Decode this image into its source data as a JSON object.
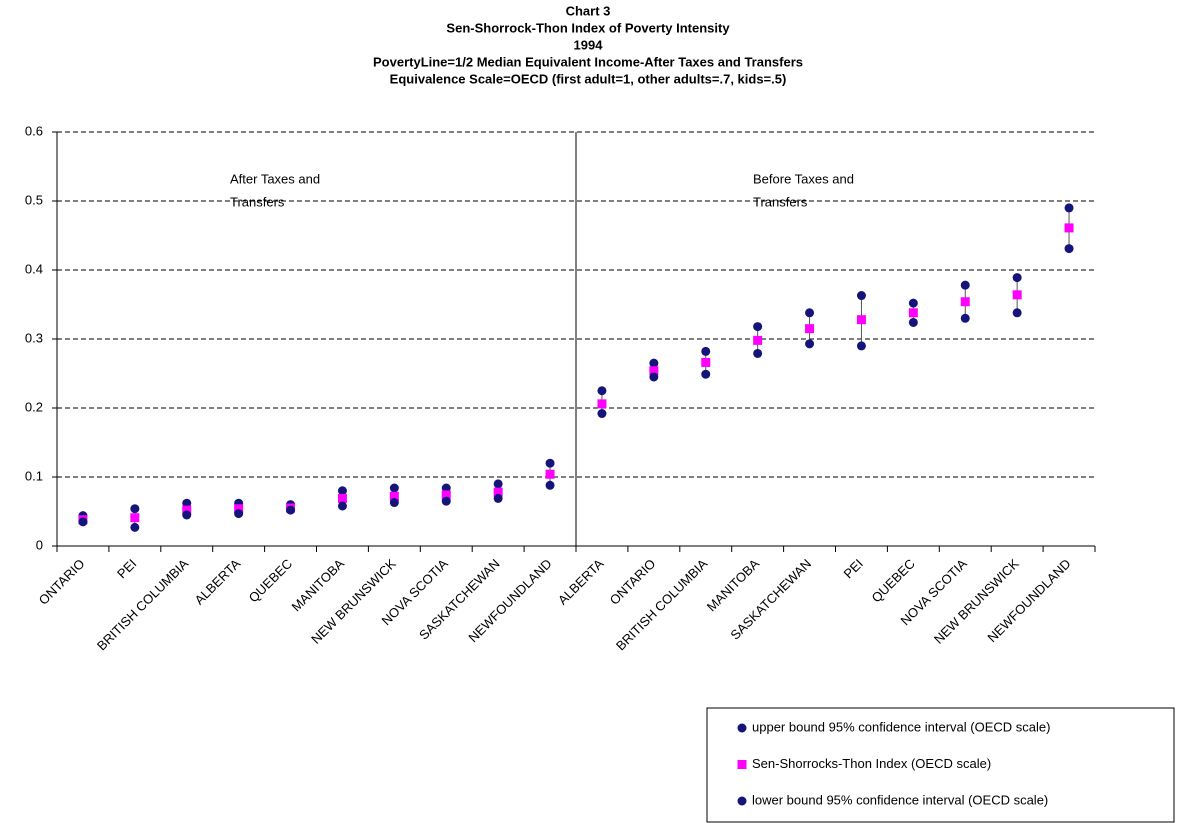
{
  "chart_data": {
    "type": "scatter",
    "title_lines": [
      "Chart 3",
      "Sen-Shorrock-Thon Index of Poverty Intensity",
      "1994",
      "PovertyLine=1/2 Median Equivalent Income-After Taxes and Transfers",
      "Equivalence Scale=OECD (first adult=1, other adults=.7, kids=.5)"
    ],
    "categories": [
      "ONTARIO",
      "PEI",
      "BRITISH COLUMBIA",
      "ALBERTA",
      "QUEBEC",
      "MANITOBA",
      "NEW BRUNSWICK",
      "NOVA SCOTIA",
      "SASKATCHEWAN",
      "NEWFOUNDLAND",
      "ALBERTA",
      "ONTARIO",
      "BRITISH COLUMBIA",
      "MANITOBA",
      "SASKATCHEWAN",
      "PEI",
      "QUEBEC",
      "NOVA SCOTIA",
      "NEW BRUNSWICK",
      "NEWFOUNDLAND"
    ],
    "annotations": [
      {
        "lines": [
          "After Taxes and",
          "Transfers"
        ]
      },
      {
        "lines": [
          "Before Taxes and",
          "Transfers"
        ]
      }
    ],
    "series": [
      {
        "name": "upper bound 95% confidence interval (OECD scale)",
        "color": "#14147a",
        "marker": "circle",
        "values": [
          0.044,
          0.054,
          0.062,
          0.062,
          0.06,
          0.08,
          0.084,
          0.084,
          0.09,
          0.12,
          0.225,
          0.265,
          0.282,
          0.318,
          0.338,
          0.363,
          0.352,
          0.378,
          0.389,
          0.49
        ]
      },
      {
        "name": "Sen-Shorrocks-Thon Index (OECD scale)",
        "color": "#ff00ff",
        "marker": "square",
        "values": [
          0.038,
          0.041,
          0.052,
          0.054,
          0.055,
          0.069,
          0.072,
          0.074,
          0.078,
          0.104,
          0.206,
          0.254,
          0.266,
          0.298,
          0.315,
          0.328,
          0.338,
          0.354,
          0.364,
          0.461
        ]
      },
      {
        "name": "lower bound 95% confidence interval (OECD scale)",
        "color": "#14147a",
        "marker": "circle",
        "values": [
          0.035,
          0.027,
          0.045,
          0.047,
          0.052,
          0.058,
          0.063,
          0.065,
          0.069,
          0.088,
          0.192,
          0.245,
          0.249,
          0.279,
          0.293,
          0.29,
          0.324,
          0.33,
          0.338,
          0.431
        ]
      }
    ],
    "ylim": [
      0,
      0.6
    ],
    "yticks": [
      0,
      0.1,
      0.2,
      0.3,
      0.4,
      0.5,
      0.6
    ],
    "grid": true
  }
}
